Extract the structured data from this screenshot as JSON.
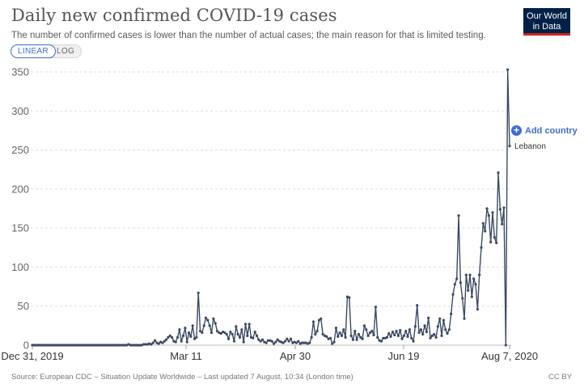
{
  "header": {
    "title": "Daily new confirmed COVID-19 cases",
    "subtitle": "The number of confirmed cases is lower than the number of actual cases; the main reason for that is limited testing.",
    "logo_line1": "Our World",
    "logo_line2": "in Data"
  },
  "controls": {
    "linear_label": "LINEAR",
    "log_label": "LOG",
    "add_country_label": "Add country"
  },
  "footer": {
    "source": "Source: European CDC – Situation Update Worldwide – Last updated 7 August, 10:34 (London time)",
    "license": "CC BY"
  },
  "colors": {
    "series": "#3b4a63",
    "accent": "#3d6ec9",
    "logo_bg": "#002147",
    "logo_bar": "#ce261e"
  },
  "chart_data": {
    "type": "line",
    "title": "Daily new confirmed COVID-19 cases",
    "subtitle": "The number of confirmed cases is lower than the number of actual cases; the main reason for that is limited testing.",
    "xlabel": "",
    "ylabel": "",
    "ylim": [
      0,
      350
    ],
    "yticks": [
      0,
      50,
      100,
      150,
      200,
      250,
      300,
      350
    ],
    "x_start": "2019-12-31",
    "x_end": "2020-08-07",
    "xtick_labels": [
      "Dec 31, 2019",
      "Mar 11",
      "Apr 30",
      "Jun 19",
      "Aug 7, 2020"
    ],
    "grid": "horizontal dashed",
    "series": [
      {
        "name": "Lebanon",
        "values": [
          0,
          0,
          0,
          0,
          0,
          0,
          0,
          0,
          0,
          0,
          0,
          0,
          0,
          0,
          0,
          0,
          0,
          0,
          0,
          0,
          0,
          0,
          0,
          0,
          0,
          0,
          0,
          0,
          0,
          0,
          0,
          0,
          0,
          0,
          0,
          0,
          0,
          0,
          0,
          0,
          0,
          0,
          0,
          0,
          0,
          0,
          0,
          0,
          0,
          0,
          0,
          1,
          0,
          0,
          0,
          0,
          0,
          0,
          0,
          1,
          1,
          1,
          2,
          1,
          3,
          6,
          3,
          2,
          4,
          3,
          5,
          7,
          10,
          12,
          10,
          5,
          4,
          10,
          20,
          5,
          12,
          22,
          4,
          16,
          11,
          25,
          8,
          10,
          67,
          18,
          16,
          25,
          35,
          32,
          25,
          16,
          34,
          28,
          18,
          16,
          15,
          17,
          16,
          14,
          8,
          17,
          14,
          5,
          24,
          14,
          10,
          20,
          4,
          27,
          12,
          27,
          10,
          9,
          17,
          12,
          7,
          5,
          7,
          4,
          3,
          6,
          6,
          5,
          2,
          4,
          7,
          5,
          4,
          3,
          5,
          8,
          5,
          8,
          3,
          4,
          3,
          5,
          2,
          3,
          3,
          3,
          2,
          3,
          10,
          30,
          14,
          18,
          32,
          34,
          14,
          12,
          11,
          8,
          9,
          2,
          4,
          22,
          11,
          16,
          12,
          20,
          10,
          62,
          61,
          12,
          7,
          18,
          7,
          14,
          10,
          8,
          25,
          20,
          12,
          16,
          18,
          13,
          49,
          10,
          6,
          5,
          9,
          9,
          10,
          15,
          11,
          17,
          13,
          18,
          12,
          19,
          8,
          12,
          18,
          11,
          20,
          9,
          5,
          24,
          51,
          16,
          20,
          14,
          25,
          17,
          35,
          9,
          12,
          14,
          10,
          24,
          34,
          12,
          32,
          20,
          15,
          20,
          40,
          65,
          78,
          85,
          166,
          80,
          60,
          34,
          90,
          70,
          90,
          62,
          85,
          78,
          46,
          90,
          125,
          156,
          146,
          175,
          166,
          132,
          170,
          138,
          131,
          221,
          174,
          155,
          176,
          0,
          353,
          255
        ]
      }
    ]
  }
}
